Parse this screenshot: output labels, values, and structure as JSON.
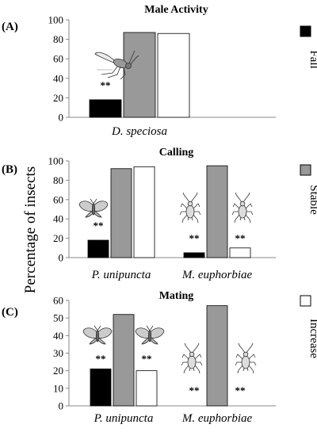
{
  "figure": {
    "shared_ylabel": "Percentage of insects",
    "legend": [
      {
        "label": "Fall",
        "color": "#000000"
      },
      {
        "label": "Stable",
        "color": "#999999"
      },
      {
        "label": "Increase",
        "color": "#ffffff"
      }
    ],
    "significance_marker": "**"
  },
  "chart_data": [
    {
      "type": "bar",
      "panel_label": "(A)",
      "title": "Male Activity",
      "ylim": [
        0,
        100
      ],
      "yticks": [
        0,
        20,
        40,
        60,
        80,
        100
      ],
      "categories": [
        "D. speciosa"
      ],
      "series": [
        {
          "name": "Fall",
          "values": [
            18
          ]
        },
        {
          "name": "Stable",
          "values": [
            87
          ]
        },
        {
          "name": "Increase",
          "values": [
            86
          ]
        }
      ],
      "icons": [
        "fly-icon"
      ]
    },
    {
      "type": "bar",
      "panel_label": "(B)",
      "title": "Calling",
      "ylim": [
        0,
        100
      ],
      "yticks": [
        0,
        20,
        40,
        60,
        80,
        100
      ],
      "categories": [
        "P. unipuncta",
        "M. euphorbiae"
      ],
      "series": [
        {
          "name": "Fall",
          "values": [
            18,
            5
          ]
        },
        {
          "name": "Stable",
          "values": [
            92,
            95
          ]
        },
        {
          "name": "Increase",
          "values": [
            94,
            10
          ]
        }
      ],
      "icons": [
        "moth-icon",
        "aphid-icon"
      ]
    },
    {
      "type": "bar",
      "panel_label": "(C)",
      "title": "Mating",
      "ylim": [
        0,
        60
      ],
      "yticks": [
        0,
        10,
        20,
        30,
        40,
        50,
        60
      ],
      "categories": [
        "P. unipuncta",
        "M. euphorbiae"
      ],
      "series": [
        {
          "name": "Fall",
          "values": [
            21,
            0
          ]
        },
        {
          "name": "Stable",
          "values": [
            52,
            57
          ]
        },
        {
          "name": "Increase",
          "values": [
            20,
            0
          ]
        }
      ],
      "icons": [
        "moth-icon",
        "aphid-icon"
      ]
    }
  ]
}
